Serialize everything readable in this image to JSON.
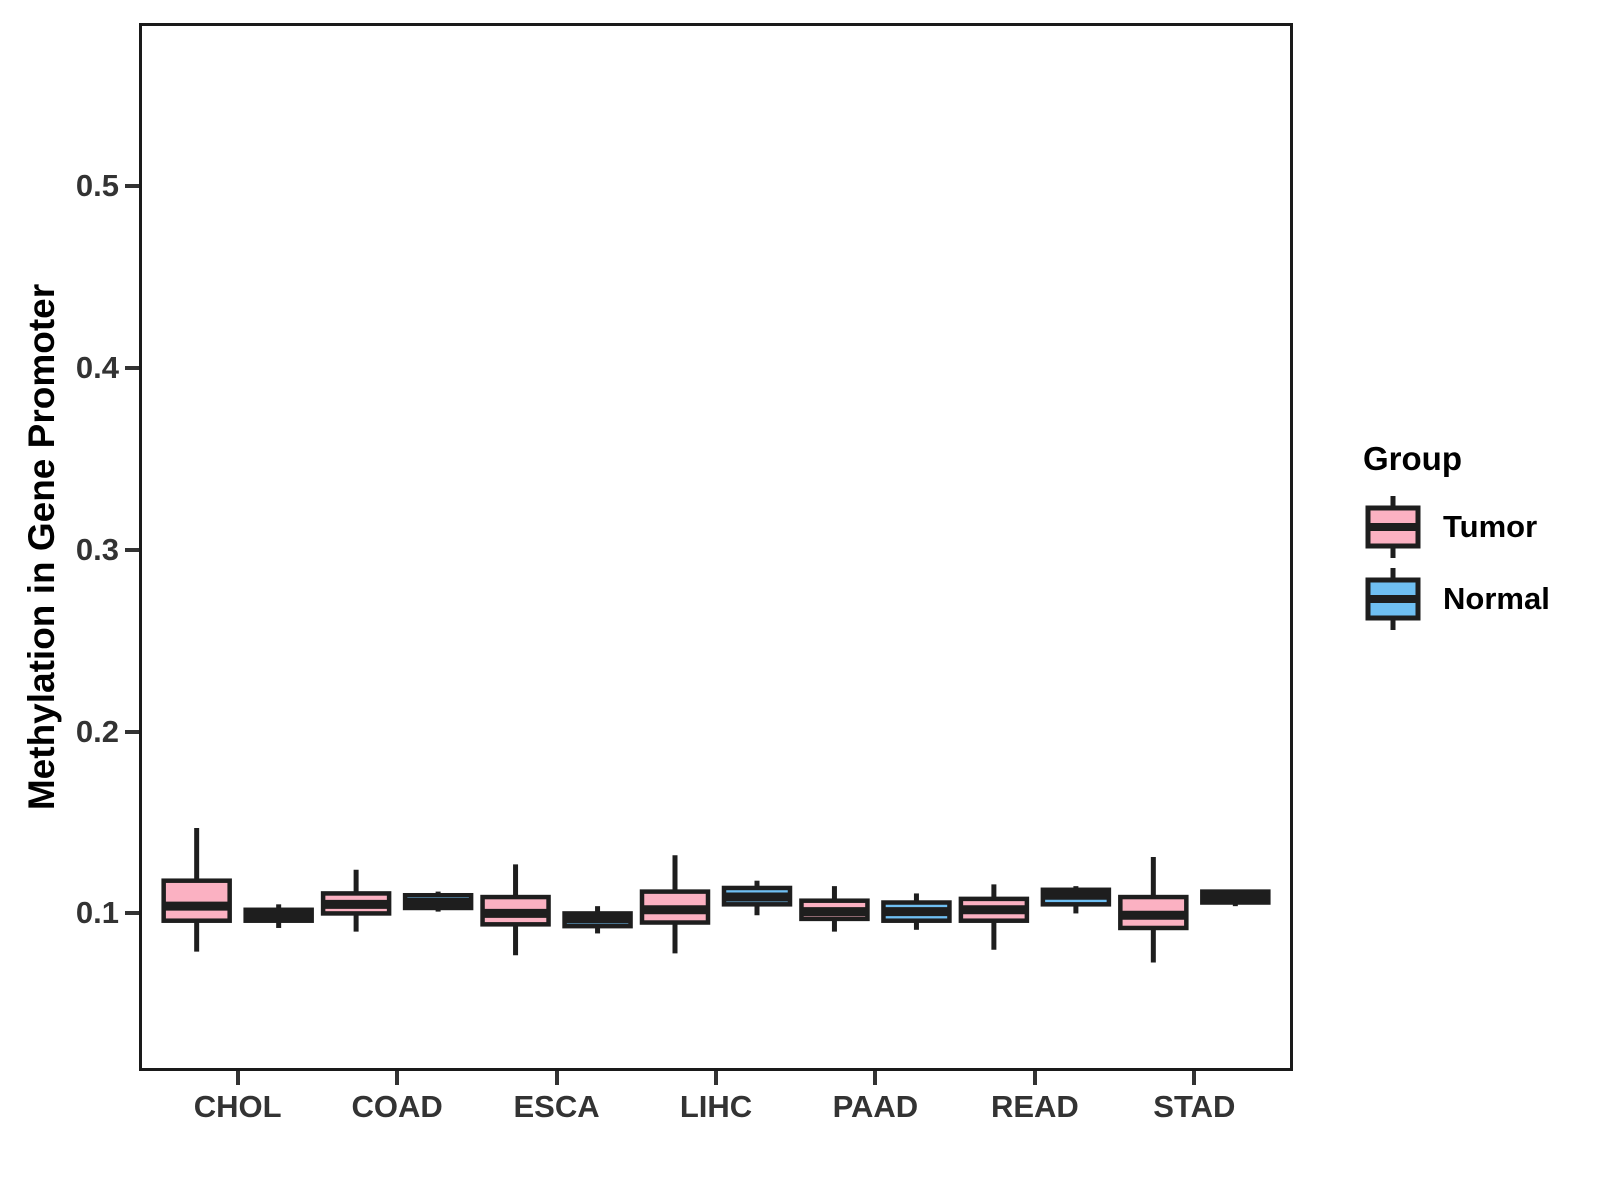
{
  "chart_data": {
    "type": "grouped_boxplot",
    "title": "",
    "ylabel": "Methylation in Gene Promoter",
    "xlabel": "",
    "legend_title": "Group",
    "legend_position": "right",
    "grid": false,
    "categories": [
      "CHOL",
      "COAD",
      "ESCA",
      "LIHC",
      "PAAD",
      "READ",
      "STAD"
    ],
    "yticks": [
      0.1,
      0.2,
      0.3,
      0.4,
      0.5
    ],
    "ylim": [
      0.015,
      0.588
    ],
    "stroke_color": "#1e1e1e",
    "panel_border_color": "#1a1a1a",
    "tick_text_color": "#333333",
    "groups": [
      {
        "name": "Tumor",
        "color": "#fbb1c2",
        "stats": [
          {
            "category": "CHOL",
            "min": 0.079,
            "q1": 0.096,
            "median": 0.104,
            "q3": 0.118,
            "max": 0.147
          },
          {
            "category": "COAD",
            "min": 0.09,
            "q1": 0.1,
            "median": 0.105,
            "q3": 0.111,
            "max": 0.124
          },
          {
            "category": "ESCA",
            "min": 0.077,
            "q1": 0.094,
            "median": 0.1,
            "q3": 0.109,
            "max": 0.127
          },
          {
            "category": "LIHC",
            "min": 0.078,
            "q1": 0.095,
            "median": 0.102,
            "q3": 0.112,
            "max": 0.132
          },
          {
            "category": "PAAD",
            "min": 0.09,
            "q1": 0.097,
            "median": 0.101,
            "q3": 0.107,
            "max": 0.115
          },
          {
            "category": "READ",
            "min": 0.08,
            "q1": 0.096,
            "median": 0.102,
            "q3": 0.108,
            "max": 0.116
          },
          {
            "category": "STAD",
            "min": 0.073,
            "q1": 0.092,
            "median": 0.099,
            "q3": 0.109,
            "max": 0.131
          }
        ]
      },
      {
        "name": "Normal",
        "color": "#6fbff2",
        "stats": [
          {
            "category": "CHOL",
            "min": 0.092,
            "q1": 0.096,
            "median": 0.099,
            "q3": 0.102,
            "max": 0.105
          },
          {
            "category": "COAD",
            "min": 0.101,
            "q1": 0.103,
            "median": 0.106,
            "q3": 0.11,
            "max": 0.112
          },
          {
            "category": "ESCA",
            "min": 0.089,
            "q1": 0.093,
            "median": 0.097,
            "q3": 0.1,
            "max": 0.104
          },
          {
            "category": "LIHC",
            "min": 0.099,
            "q1": 0.105,
            "median": 0.109,
            "q3": 0.114,
            "max": 0.118
          },
          {
            "category": "PAAD",
            "min": 0.091,
            "q1": 0.096,
            "median": 0.101,
            "q3": 0.106,
            "max": 0.111
          },
          {
            "category": "READ",
            "min": 0.1,
            "q1": 0.105,
            "median": 0.11,
            "q3": 0.113,
            "max": 0.115
          },
          {
            "category": "STAD",
            "min": 0.104,
            "q1": 0.106,
            "median": 0.109,
            "q3": 0.112,
            "max": 0.113
          }
        ]
      }
    ]
  }
}
